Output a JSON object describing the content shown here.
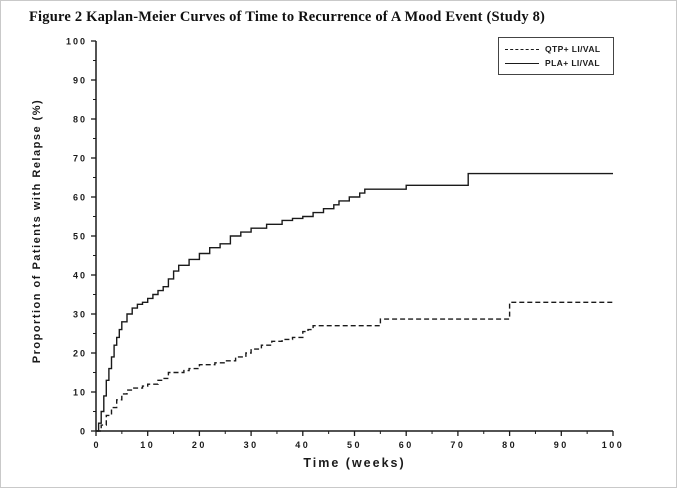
{
  "figure": {
    "title": "Figure 2 Kaplan-Meier Curves of Time to Recurrence of A Mood Event (Study 8)"
  },
  "chart_data": {
    "type": "line",
    "subtype": "kaplan-meier-step",
    "title": "Kaplan-Meier Curves of Time to Recurrence of A Mood Event (Study 8)",
    "xlabel": "Time (weeks)",
    "ylabel": "Proportion of Patients with Relapse (%)",
    "xlim": [
      0,
      100
    ],
    "ylim": [
      0,
      100
    ],
    "x_ticks": [
      0,
      10,
      20,
      30,
      40,
      50,
      60,
      70,
      80,
      90,
      100
    ],
    "y_ticks": [
      0,
      10,
      20,
      30,
      40,
      50,
      60,
      70,
      80,
      90,
      100
    ],
    "grid": false,
    "legend_position": "top-right",
    "axis_color": "#1a1a1a",
    "series": [
      {
        "name": "QTP+ LI/VAL",
        "style": "dashed",
        "color": "#1a1a1a",
        "points": [
          [
            0,
            0
          ],
          [
            1,
            1.5
          ],
          [
            2,
            4
          ],
          [
            3,
            6
          ],
          [
            4,
            8
          ],
          [
            5,
            9.5
          ],
          [
            6,
            10.5
          ],
          [
            7,
            11
          ],
          [
            9,
            11.5
          ],
          [
            10,
            12
          ],
          [
            12,
            13
          ],
          [
            13,
            13.5
          ],
          [
            14,
            15
          ],
          [
            17,
            15.5
          ],
          [
            18,
            16
          ],
          [
            20,
            17
          ],
          [
            23,
            17.5
          ],
          [
            25,
            18
          ],
          [
            27,
            19
          ],
          [
            29,
            20
          ],
          [
            30,
            21
          ],
          [
            32,
            22
          ],
          [
            34,
            23
          ],
          [
            36,
            23.5
          ],
          [
            38,
            24
          ],
          [
            40,
            25.5
          ],
          [
            41,
            26
          ],
          [
            42,
            27
          ],
          [
            55,
            28.7
          ],
          [
            80,
            28.7
          ],
          [
            80,
            33
          ],
          [
            100,
            33
          ]
        ]
      },
      {
        "name": "PLA+ LI/VAL",
        "style": "solid",
        "color": "#1a1a1a",
        "points": [
          [
            0,
            0
          ],
          [
            0.5,
            2
          ],
          [
            1,
            5
          ],
          [
            1.5,
            9
          ],
          [
            2,
            13
          ],
          [
            2.5,
            16
          ],
          [
            3,
            19
          ],
          [
            3.5,
            22
          ],
          [
            4,
            24
          ],
          [
            4.5,
            26
          ],
          [
            5,
            28
          ],
          [
            6,
            30
          ],
          [
            7,
            31.5
          ],
          [
            8,
            32.5
          ],
          [
            9,
            33
          ],
          [
            10,
            34
          ],
          [
            11,
            35
          ],
          [
            12,
            36
          ],
          [
            13,
            37
          ],
          [
            14,
            39
          ],
          [
            15,
            41
          ],
          [
            16,
            42.5
          ],
          [
            18,
            44
          ],
          [
            20,
            45.5
          ],
          [
            22,
            47
          ],
          [
            24,
            48
          ],
          [
            26,
            50
          ],
          [
            28,
            51
          ],
          [
            30,
            52
          ],
          [
            33,
            53
          ],
          [
            36,
            54
          ],
          [
            38,
            54.5
          ],
          [
            40,
            55
          ],
          [
            42,
            56
          ],
          [
            44,
            57
          ],
          [
            46,
            58
          ],
          [
            47,
            59
          ],
          [
            49,
            60
          ],
          [
            51,
            61
          ],
          [
            52,
            62
          ],
          [
            60,
            63
          ],
          [
            72,
            66
          ],
          [
            100,
            66
          ]
        ]
      }
    ]
  }
}
